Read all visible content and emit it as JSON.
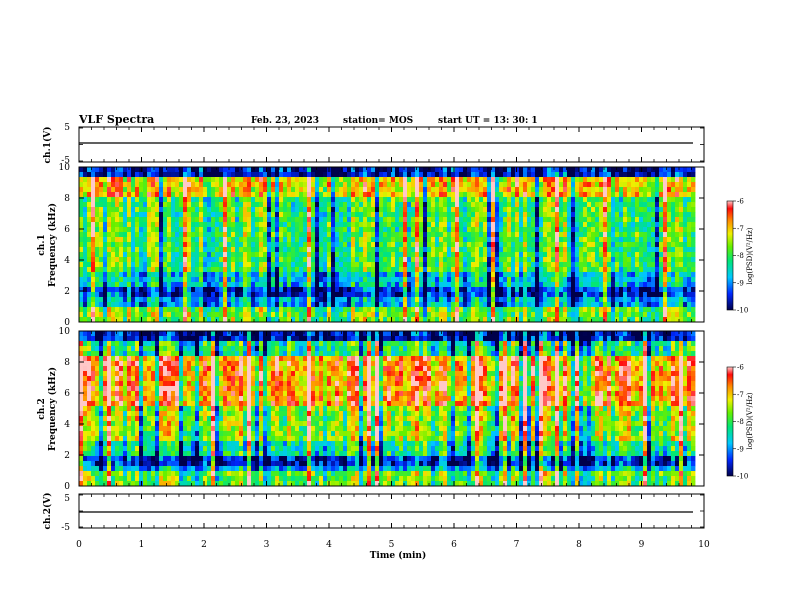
{
  "header": {
    "title": "VLF Spectra",
    "date": "Feb. 23, 2023",
    "station": "station= MOS",
    "start": "start  UT =   13: 30: 1"
  },
  "chart_data": [
    {
      "type": "line",
      "name": "ch1-waveform",
      "ylabel": "ch.1(V)",
      "ylim": [
        -5,
        5
      ],
      "yticks": [
        "5",
        "-5"
      ],
      "x": [
        0,
        9.83
      ],
      "y": [
        0,
        0
      ]
    },
    {
      "type": "heatmap",
      "name": "ch1-spectrogram",
      "ylabel_line1": "ch.1",
      "ylabel_line2": "Frequency (kHz)",
      "ylim": [
        0,
        10
      ],
      "yticks": [
        "0",
        "2",
        "4",
        "6",
        "8",
        "10"
      ],
      "xlim": [
        0,
        9.83
      ],
      "colorbar": {
        "label": "log(PSD)(V²/Hz)",
        "ticks": [
          "-6",
          "-7",
          "-8",
          "-9",
          "-10"
        ],
        "range": [
          -10,
          -6
        ]
      }
    },
    {
      "type": "heatmap",
      "name": "ch2-spectrogram",
      "ylabel_line1": "ch.2",
      "ylabel_line2": "Frequency (kHz)",
      "ylim": [
        0,
        10
      ],
      "yticks": [
        "0",
        "2",
        "4",
        "6",
        "8",
        "10"
      ],
      "xlim": [
        0,
        9.83
      ],
      "colorbar": {
        "label": "log(PSD)(V²/Hz)",
        "ticks": [
          "-6",
          "-7",
          "-8",
          "-9",
          "-10"
        ],
        "range": [
          -10,
          -6
        ]
      }
    },
    {
      "type": "line",
      "name": "ch2-waveform",
      "ylabel": "ch.2(V)",
      "ylim": [
        -5,
        5
      ],
      "yticks": [
        "5",
        "-5"
      ],
      "x": [
        0,
        9.83
      ],
      "y": [
        0,
        0
      ]
    }
  ],
  "xaxis": {
    "label": "Time  (min)",
    "ticks": [
      "0",
      "1",
      "2",
      "3",
      "4",
      "5",
      "6",
      "7",
      "8",
      "9",
      "10"
    ],
    "range": [
      0,
      10
    ]
  },
  "colors": {
    "dark": "#00005a",
    "blue": "#0032ff",
    "cyan": "#00e6ff",
    "green": "#32e632",
    "yellow": "#e6e600",
    "red": "#ff1e00"
  }
}
